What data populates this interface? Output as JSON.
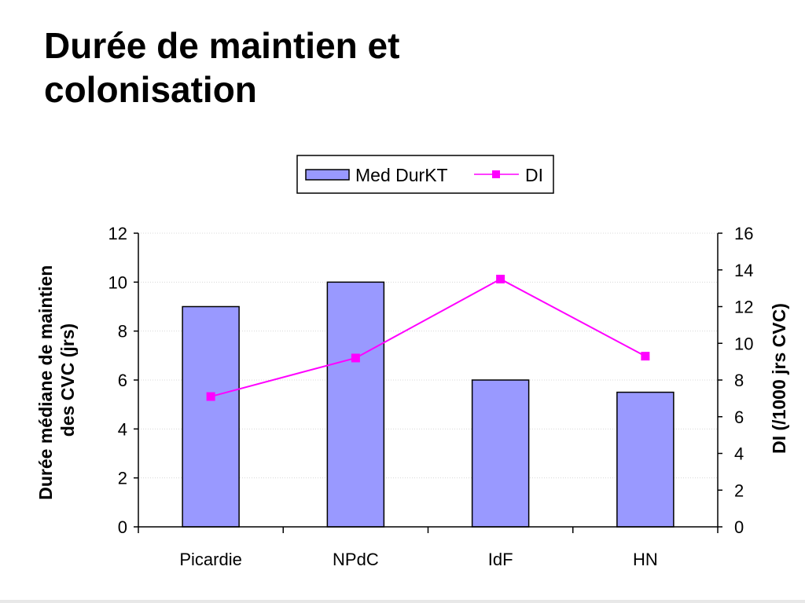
{
  "slide": {
    "title_line1": "Durée de maintien et",
    "title_line2": "colonisation"
  },
  "colors": {
    "bar_fill": "#9999ff",
    "bar_stroke": "#000000",
    "line": "#ff00ff",
    "grid": "#d8d8d8"
  },
  "chart_data": {
    "type": "bar",
    "categories": [
      "Picardie",
      "NPdC",
      "IdF",
      "HN"
    ],
    "series": [
      {
        "name": "Med DurKT",
        "type": "bar",
        "axis": "left",
        "values": [
          9,
          10,
          6,
          5.5
        ]
      },
      {
        "name": "DI",
        "type": "line",
        "axis": "right",
        "values": [
          7.1,
          9.2,
          13.5,
          9.3
        ]
      }
    ],
    "ylabel_line1": "Durée médiane de maintien",
    "ylabel_line2": "des CVC (jrs)",
    "y2label": "DI (/1000 jrs CVC)",
    "ylim": [
      0,
      12
    ],
    "y_ticks": [
      "0",
      "2",
      "4",
      "6",
      "8",
      "10",
      "12"
    ],
    "y2lim": [
      0,
      16
    ],
    "y2_ticks": [
      "0",
      "2",
      "4",
      "6",
      "8",
      "10",
      "12",
      "14",
      "16"
    ],
    "grid": true,
    "legend_position": "top-center"
  }
}
